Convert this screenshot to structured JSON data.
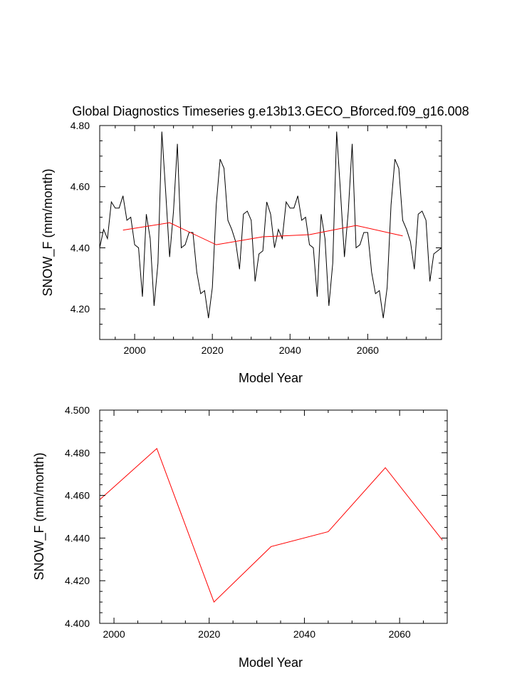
{
  "chart_data": [
    {
      "type": "line",
      "title": "Global Diagnostics Timeseries g.e13b13.GECO_Bforced.f09_g16.008",
      "xlabel": "Model Year",
      "ylabel": "SNOW_F (mm/month)",
      "xlim": [
        1991,
        2079
      ],
      "ylim": [
        4.1,
        4.8
      ],
      "x_ticks": [
        "2000",
        "2020",
        "2040",
        "2060"
      ],
      "y_ticks": [
        "4.20",
        "4.40",
        "4.60",
        "4.80"
      ],
      "colors": {
        "annual": "#000000",
        "mean": "#ff0000"
      },
      "series": [
        {
          "x": [
            1991,
            1992,
            1993,
            1994,
            1995,
            1996,
            1997,
            1998,
            1999,
            2000,
            2001,
            2002,
            2003,
            2004,
            2005,
            2006,
            2007,
            2008,
            2009,
            2010,
            2011,
            2012,
            2013,
            2014,
            2015,
            2016,
            2017,
            2018,
            2019,
            2020,
            2021,
            2022,
            2023,
            2024,
            2025,
            2026,
            2027,
            2028,
            2029,
            2030,
            2031,
            2032,
            2033,
            2034,
            2035,
            2036,
            2037,
            2038,
            2039,
            2040,
            2041,
            2042,
            2043,
            2044,
            2045,
            2046,
            2047,
            2048,
            2049,
            2050,
            2051,
            2052,
            2053,
            2054,
            2055,
            2056,
            2057,
            2058,
            2059,
            2060,
            2061,
            2062,
            2063,
            2064,
            2065,
            2066,
            2067,
            2068,
            2069,
            2070,
            2071,
            2072,
            2073,
            2074,
            2075,
            2076,
            2077,
            2078,
            2079
          ],
          "values": [
            4.4,
            4.46,
            4.43,
            4.55,
            4.53,
            4.53,
            4.57,
            4.49,
            4.5,
            4.41,
            4.4,
            4.24,
            4.51,
            4.43,
            4.21,
            4.35,
            4.78,
            4.58,
            4.37,
            4.52,
            4.74,
            4.4,
            4.41,
            4.45,
            4.45,
            4.32,
            4.25,
            4.26,
            4.17,
            4.27,
            4.54,
            4.69,
            4.66,
            4.49,
            4.46,
            4.42,
            4.33,
            4.51,
            4.52,
            4.49,
            4.29,
            4.38,
            4.39,
            4.55,
            4.51,
            4.4,
            4.46,
            4.43,
            4.55,
            4.53,
            4.53,
            4.57,
            4.49,
            4.5,
            4.41,
            4.4,
            4.24,
            4.51,
            4.43,
            4.21,
            4.35,
            4.78,
            4.58,
            4.37,
            4.52,
            4.74,
            4.4,
            4.41,
            4.45,
            4.45,
            4.32,
            4.25,
            4.26,
            4.17,
            4.27,
            4.54,
            4.69,
            4.66,
            4.49,
            4.46,
            4.42,
            4.33,
            4.51,
            4.52,
            4.49,
            4.29,
            4.38,
            4.39,
            4.4
          ]
        },
        {
          "x": [
            1997,
            2009,
            2021,
            2033,
            2045,
            2057,
            2069
          ],
          "values": [
            4.458,
            4.482,
            4.41,
            4.436,
            4.443,
            4.473,
            4.439
          ]
        }
      ]
    },
    {
      "type": "line",
      "title": "",
      "xlabel": "Model Year",
      "ylabel": "SNOW_F (mm/month)",
      "xlim": [
        1997,
        2070
      ],
      "ylim": [
        4.4,
        4.5
      ],
      "x_ticks": [
        "2000",
        "2020",
        "2040",
        "2060"
      ],
      "y_ticks": [
        "4.400",
        "4.420",
        "4.440",
        "4.460",
        "4.480",
        "4.500"
      ],
      "colors": {
        "mean": "#ff0000"
      },
      "series": [
        {
          "x": [
            1997,
            2009,
            2021,
            2033,
            2045,
            2057,
            2069
          ],
          "values": [
            4.458,
            4.482,
            4.41,
            4.436,
            4.443,
            4.473,
            4.439
          ]
        }
      ]
    }
  ]
}
